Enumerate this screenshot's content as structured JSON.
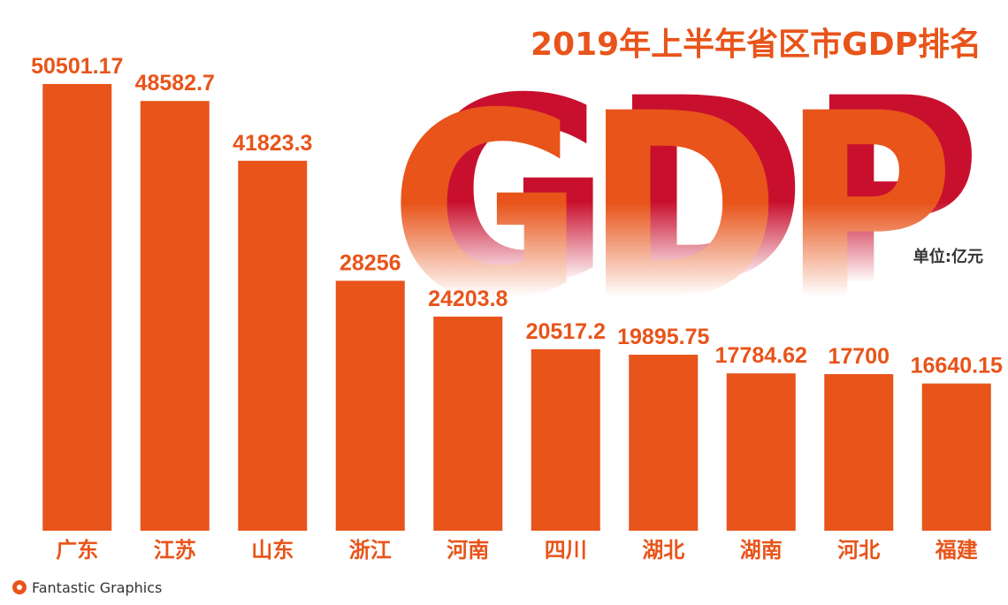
{
  "chart_data": {
    "type": "bar",
    "title": "2019年上半年省区市GDP排名",
    "background_text": "GDP",
    "unit_label": "单位:亿元",
    "source": "Fantastic Graphics",
    "categories": [
      "广东",
      "江苏",
      "山东",
      "浙江",
      "河南",
      "四川",
      "湖北",
      "湖南",
      "河北",
      "福建"
    ],
    "values": [
      50501.17,
      48582.7,
      41823.3,
      28256,
      24203.8,
      20517.2,
      19895.75,
      17784.62,
      17700,
      16640.15
    ],
    "color": "#e8541a",
    "ylim": [
      0,
      52000
    ]
  }
}
